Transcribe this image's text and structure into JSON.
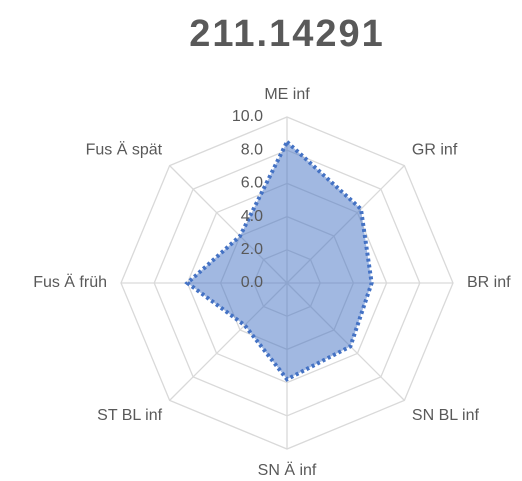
{
  "chart_data": {
    "type": "radar",
    "title": "211.14291",
    "categories": [
      "ME inf",
      "GR inf",
      "BR inf",
      "SN BL inf",
      "SN Ä inf",
      "ST BL inf",
      "Fus Ä früh",
      "Fus Ä spät"
    ],
    "series": [
      {
        "color": "#4472c4",
        "values": [
          8.5,
          6.3,
          5.1,
          5.4,
          5.8,
          3.6,
          6.0,
          4.0
        ]
      }
    ],
    "ylim": [
      0,
      10
    ],
    "yticks": [
      {
        "value": 0,
        "label": "0.0"
      },
      {
        "value": 2,
        "label": "2.0"
      },
      {
        "value": 4,
        "label": "4.0"
      },
      {
        "value": 6,
        "label": "6.0"
      },
      {
        "value": 8,
        "label": "8.0"
      },
      {
        "value": 10,
        "label": "10.0"
      }
    ],
    "grid": true
  }
}
